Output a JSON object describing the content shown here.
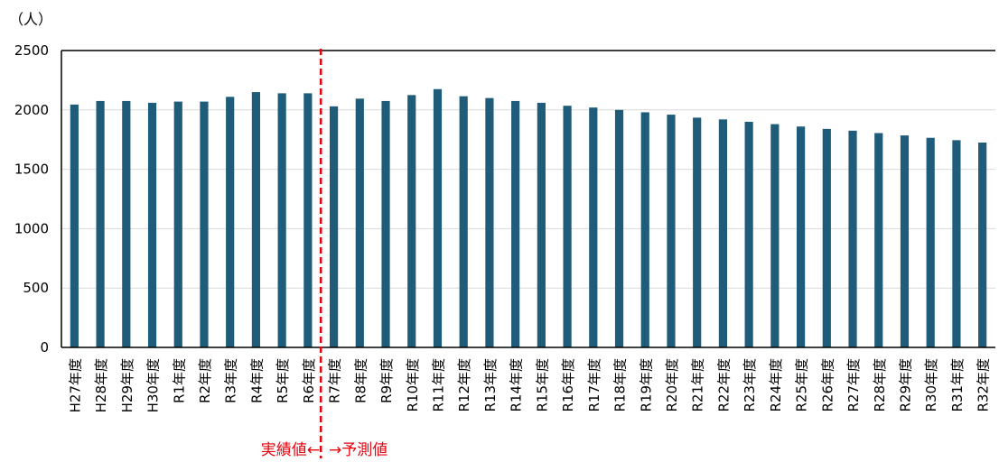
{
  "chart_data": {
    "type": "bar",
    "title": "",
    "xlabel": "",
    "ylabel": "",
    "y_unit": "（人）",
    "ylim": [
      0,
      2500
    ],
    "yticks": [
      0,
      500,
      1000,
      1500,
      2000,
      2500
    ],
    "grid": true,
    "categories": [
      "H27年度",
      "H28年度",
      "H29年度",
      "H30年度",
      "R1年度",
      "R2年度",
      "R3年度",
      "R4年度",
      "R5年度",
      "R6年度",
      "R7年度",
      "R8年度",
      "R9年度",
      "R10年度",
      "R11年度",
      "R12年度",
      "R13年度",
      "R14年度",
      "R15年度",
      "R16年度",
      "R17年度",
      "R18年度",
      "R19年度",
      "R20年度",
      "R21年度",
      "R22年度",
      "R23年度",
      "R24年度",
      "R25年度",
      "R26年度",
      "R27年度",
      "R28年度",
      "R29年度",
      "R30年度",
      "R31年度",
      "R32年度"
    ],
    "values": [
      2045,
      2075,
      2075,
      2060,
      2070,
      2070,
      2110,
      2150,
      2140,
      2140,
      2030,
      2095,
      2075,
      2125,
      2175,
      2115,
      2100,
      2075,
      2060,
      2035,
      2020,
      2000,
      1980,
      1960,
      1935,
      1920,
      1900,
      1880,
      1860,
      1840,
      1825,
      1805,
      1785,
      1765,
      1745,
      1725
    ],
    "bar_color": "#1f5c7a",
    "divider": {
      "after_category": "R6年度",
      "color": "#e8000b",
      "left_label": "実績値←",
      "right_label": "→予測値"
    }
  }
}
